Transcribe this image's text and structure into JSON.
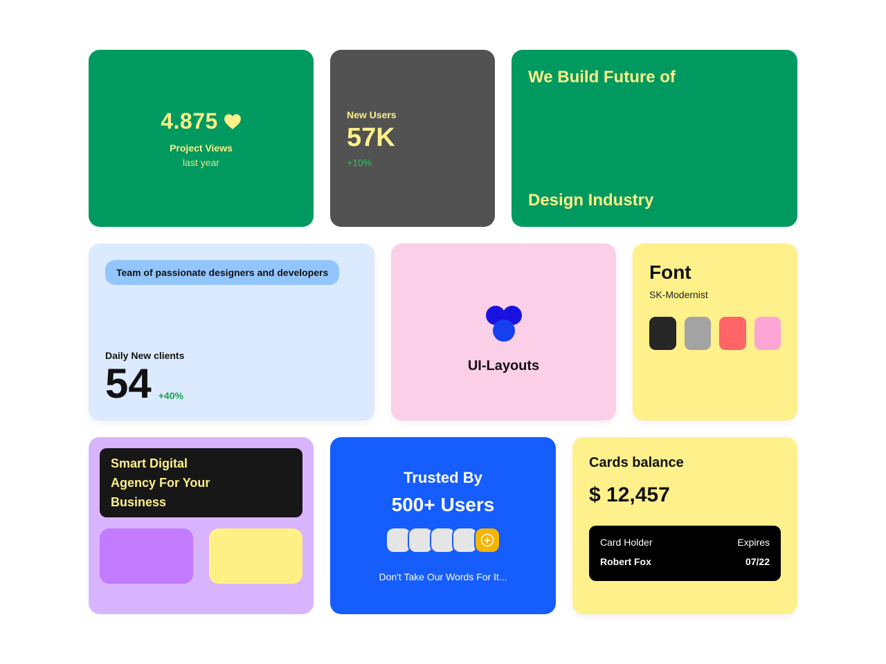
{
  "rating": {
    "value": "4.875",
    "label": "Project Views",
    "sub": "last year"
  },
  "users": {
    "label": "New Users",
    "value": "57K",
    "change": "+10%"
  },
  "future": {
    "line1": "We Build Future of",
    "line2": "Design Industry"
  },
  "team": {
    "pill": "Team of passionate designers and developers",
    "daily_label": "Daily New clients",
    "daily_value": "54",
    "daily_change": "+40%"
  },
  "layouts": {
    "title": "UI-Layouts"
  },
  "font": {
    "title": "Font",
    "name": "SK-Modernist",
    "swatches": [
      "#262626",
      "#a3a3a3",
      "#ff6467",
      "#fda5d5"
    ]
  },
  "agency": {
    "lines": [
      "Smart Digital",
      "Agency For Your",
      "Business"
    ],
    "tile_colors": [
      "#c27aff",
      "#fff085"
    ]
  },
  "trusted": {
    "title": "Trusted By",
    "count": "500+ Users",
    "note": "Don't Take Our Words For It..."
  },
  "balance": {
    "title": "Cards balance",
    "value": "$ 12,457",
    "card": {
      "holder_label": "Card Holder",
      "expires_label": "Expires",
      "holder_name": "Robert Fox",
      "expires_value": "07/22"
    }
  },
  "colors": {
    "green": "#00995f",
    "yellow_text": "#fdf08a",
    "dark_gray": "#525252",
    "light_blue": "#dbeafe",
    "pink": "#fbcfe8",
    "yellow": "#fef08a",
    "purple": "#d8b4fe",
    "blue": "#155dfc"
  },
  "icons": [
    "heart-icon",
    "ui-layouts-logo-icon",
    "plus-circle-icon"
  ]
}
